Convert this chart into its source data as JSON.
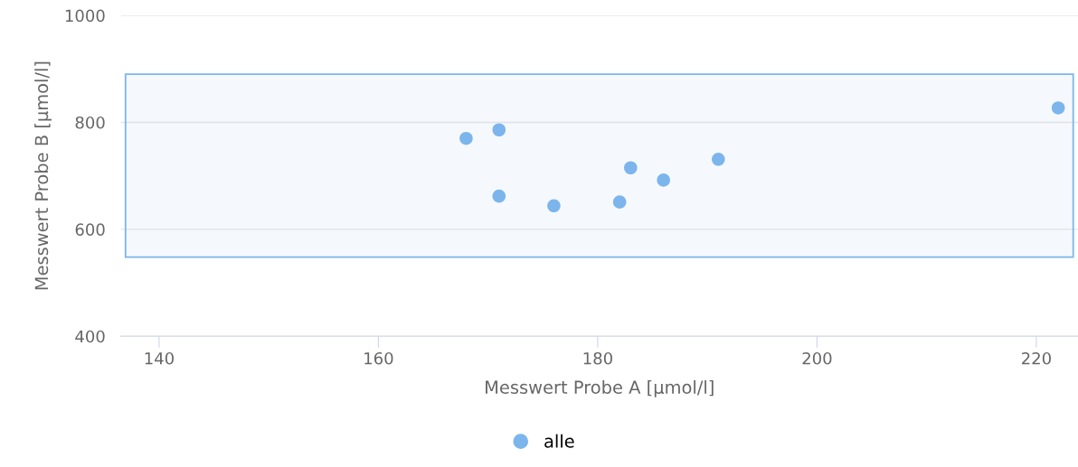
{
  "chart_data": {
    "type": "scatter",
    "xlabel": "Messwert Probe A [µmol/l]",
    "ylabel": "Messwert Probe B [µmol/l]",
    "series": [
      {
        "name": "alle",
        "color": "#7cb5ec",
        "x": [
          168,
          171,
          171,
          176,
          182,
          183,
          186,
          191,
          222
        ],
        "values": [
          770,
          786,
          662,
          644,
          651,
          715,
          692,
          731,
          827
        ]
      }
    ],
    "xlim": [
      136.5,
      223.8
    ],
    "xticks": [
      140,
      160,
      180,
      200,
      220
    ],
    "ylim": [
      400,
      1000
    ],
    "yticks": [
      400,
      600,
      800,
      1000
    ],
    "bands": [
      {
        "axis": "y",
        "from": 548,
        "to": 890,
        "color": "#7cb5ec"
      }
    ],
    "grid": "y",
    "legend": "bottom",
    "marker": "circle"
  }
}
